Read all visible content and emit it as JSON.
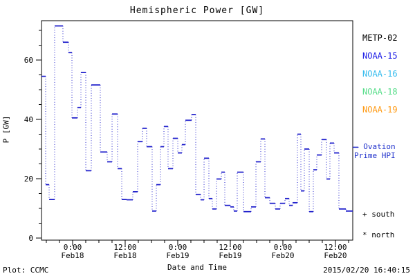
{
  "title": "Hemispheric Power [GW]",
  "footer": {
    "left": "Plot: CCMC",
    "right": "2015/02/20 16:40:15"
  },
  "colors": {
    "axis": "#000000",
    "line": "#2222cc",
    "legend_text_blue": "#2233cc"
  },
  "legend": {
    "satellites": [
      {
        "label": "METP-02",
        "color": "#000000"
      },
      {
        "label": "NOAA-15",
        "color": "#1a1ae6"
      },
      {
        "label": "NOAA-16",
        "color": "#33bbee"
      },
      {
        "label": "NOAA-18",
        "color": "#55dd88"
      },
      {
        "label": "NOAA-19",
        "color": "#ff9911"
      }
    ],
    "ovation": {
      "symbol": "–",
      "label": "Ovation Prime HPI",
      "color": "#2233cc"
    },
    "markers": [
      {
        "symbol": "+",
        "label": "south"
      },
      {
        "symbol": "*",
        "label": "north"
      }
    ]
  },
  "chart_data": {
    "type": "line",
    "style": "steps-post",
    "title": "Hemispheric Power [GW]",
    "xlabel": "Date and Time",
    "ylabel": "P [GW]",
    "ylim": [
      0,
      73.5
    ],
    "yticks": [
      0,
      20,
      40,
      60
    ],
    "y_minor_step": 5,
    "x_hours_range": [
      0,
      71.05
    ],
    "x_minor_step_hours": 3,
    "grid": "off",
    "legend_position": "right-outside",
    "xticks": [
      {
        "hour": 7.1,
        "time": "0:00",
        "date": "Feb18"
      },
      {
        "hour": 19.1,
        "time": "12:00",
        "date": "Feb18"
      },
      {
        "hour": 31.1,
        "time": "0:00",
        "date": "Feb19"
      },
      {
        "hour": 43.1,
        "time": "12:00",
        "date": "Feb19"
      },
      {
        "hour": 55.1,
        "time": "0:00",
        "date": "Feb20"
      },
      {
        "hour": 67.1,
        "time": "12:00",
        "date": "Feb20"
      }
    ],
    "right_axis_marker_gw": 30.6,
    "series_name": "Ovation Prime HPI",
    "steps_hours_gw": [
      [
        0,
        0.95,
        54.5
      ],
      [
        0.95,
        1.74,
        18
      ],
      [
        1.74,
        3,
        13
      ],
      [
        3,
        4.89,
        71.5
      ],
      [
        4.89,
        6.16,
        66
      ],
      [
        6.16,
        6.95,
        62.5
      ],
      [
        6.95,
        8.21,
        40.5
      ],
      [
        8.21,
        9,
        44
      ],
      [
        9,
        10.11,
        55.8
      ],
      [
        10.11,
        11.37,
        22.7
      ],
      [
        11.37,
        13.42,
        51.6
      ],
      [
        13.42,
        15,
        29
      ],
      [
        15,
        16.11,
        25.7
      ],
      [
        16.11,
        17.37,
        41.8
      ],
      [
        17.37,
        18.32,
        23.4
      ],
      [
        18.32,
        19.42,
        13
      ],
      [
        19.42,
        20.84,
        12.9
      ],
      [
        20.84,
        21.95,
        15.6
      ],
      [
        21.95,
        23.05,
        32.5
      ],
      [
        23.05,
        24,
        37
      ],
      [
        24,
        25.26,
        30.8
      ],
      [
        25.26,
        26.21,
        9.1
      ],
      [
        26.21,
        27.16,
        18
      ],
      [
        27.16,
        27.95,
        30.8
      ],
      [
        27.95,
        28.89,
        37.6
      ],
      [
        28.89,
        30,
        23.4
      ],
      [
        30,
        31.11,
        33.6
      ],
      [
        31.11,
        32.05,
        28.7
      ],
      [
        32.05,
        32.84,
        31.5
      ],
      [
        32.84,
        34.26,
        39.7
      ],
      [
        34.26,
        35.21,
        41.6
      ],
      [
        35.21,
        36.32,
        14.7
      ],
      [
        36.32,
        37.11,
        12.9
      ],
      [
        37.11,
        38.21,
        26.9
      ],
      [
        38.21,
        39,
        13.3
      ],
      [
        39,
        39.95,
        9.8
      ],
      [
        39.95,
        41.05,
        19.9
      ],
      [
        41.05,
        41.84,
        22.2
      ],
      [
        41.84,
        43.11,
        11
      ],
      [
        43.11,
        43.89,
        10.5
      ],
      [
        43.89,
        44.68,
        9.1
      ],
      [
        44.68,
        46.11,
        22.2
      ],
      [
        46.11,
        47.84,
        8.9
      ],
      [
        47.84,
        48.95,
        10.5
      ],
      [
        48.95,
        50.05,
        25.7
      ],
      [
        50.05,
        51,
        33.4
      ],
      [
        51,
        52.11,
        13.6
      ],
      [
        52.11,
        53.37,
        11.7
      ],
      [
        53.37,
        54.47,
        9.8
      ],
      [
        54.47,
        55.58,
        11.7
      ],
      [
        55.58,
        56.53,
        13.3
      ],
      [
        56.53,
        57.32,
        11
      ],
      [
        57.32,
        58.42,
        11.9
      ],
      [
        58.42,
        59.21,
        35
      ],
      [
        59.21,
        60,
        15.9
      ],
      [
        60,
        61.11,
        30
      ],
      [
        61.11,
        62.05,
        8.9
      ],
      [
        62.05,
        62.84,
        23
      ],
      [
        62.84,
        63.95,
        28
      ],
      [
        63.95,
        65.05,
        33.2
      ],
      [
        65.05,
        65.84,
        19.9
      ],
      [
        65.84,
        66.79,
        32
      ],
      [
        66.79,
        67.89,
        28.7
      ],
      [
        67.89,
        69.47,
        9.8
      ],
      [
        69.47,
        71.05,
        9.1
      ]
    ]
  }
}
